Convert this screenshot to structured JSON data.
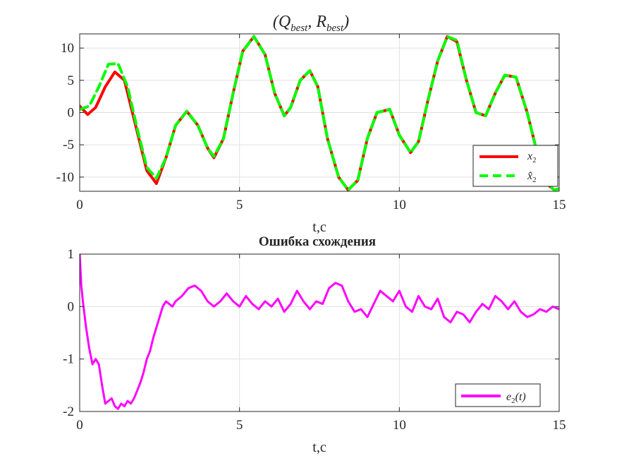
{
  "chart_data": [
    {
      "type": "line",
      "title": "(Q_best, R_best)",
      "xlabel": "t,c",
      "ylabel": "",
      "xlim": [
        0,
        15
      ],
      "ylim": [
        -12.2,
        12.2
      ],
      "xticks": [
        0,
        5,
        10,
        15
      ],
      "yticks": [
        10,
        5,
        0,
        -5,
        -10
      ],
      "grid": true,
      "legend_position": "bottom-right",
      "colors": {
        "x2": "#ff0000",
        "x2_hat": "#00ff00"
      },
      "series": [
        {
          "name": "x2",
          "style": "solid",
          "x": [
            0,
            0.25,
            0.5,
            0.8,
            1.1,
            1.4,
            1.8,
            2.1,
            2.4,
            2.7,
            3.0,
            3.35,
            3.7,
            4.0,
            4.2,
            4.5,
            4.8,
            5.1,
            5.45,
            5.8,
            6.1,
            6.4,
            6.6,
            6.9,
            7.2,
            7.45,
            7.75,
            8.1,
            8.4,
            8.7,
            9.0,
            9.3,
            9.7,
            10.0,
            10.35,
            10.6,
            10.9,
            11.2,
            11.5,
            11.8,
            12.1,
            12.4,
            12.7,
            13.0,
            13.3,
            13.65,
            14.0,
            14.3,
            14.6,
            14.85,
            15.0
          ],
          "y": [
            1.0,
            -0.3,
            0.8,
            4.0,
            6.3,
            5.0,
            -3.0,
            -9.0,
            -11.0,
            -7.0,
            -2.0,
            0.2,
            -2.0,
            -5.5,
            -7.0,
            -4.0,
            3.0,
            9.5,
            11.8,
            9.0,
            3.0,
            -0.5,
            0.8,
            5.0,
            6.5,
            4.0,
            -4.0,
            -10.0,
            -12.0,
            -10.5,
            -4.0,
            0.0,
            0.5,
            -3.5,
            -6.2,
            -4.5,
            2.0,
            8.0,
            11.8,
            11.0,
            5.0,
            0.0,
            -0.5,
            3.0,
            5.8,
            5.5,
            0.0,
            -6.0,
            -11.0,
            -12.0,
            -11.8
          ]
        },
        {
          "name": "x̂2",
          "style": "dashed",
          "x": [
            0,
            0.3,
            0.6,
            0.9,
            1.2,
            1.5,
            1.8,
            2.1,
            2.4,
            2.7,
            3.0,
            3.35,
            3.7,
            4.0,
            4.2,
            4.5,
            4.8,
            5.1,
            5.45,
            5.8,
            6.1,
            6.4,
            6.6,
            6.9,
            7.2,
            7.45,
            7.75,
            8.1,
            8.4,
            8.7,
            9.0,
            9.3,
            9.7,
            10.0,
            10.35,
            10.6,
            10.9,
            11.2,
            11.5,
            11.8,
            12.1,
            12.4,
            12.7,
            13.0,
            13.3,
            13.65,
            14.0,
            14.3,
            14.6,
            14.85,
            15.0
          ],
          "y": [
            0.5,
            1.0,
            4.0,
            7.5,
            7.6,
            4.0,
            -2.5,
            -8.5,
            -10.2,
            -7.0,
            -2.0,
            0.2,
            -2.0,
            -5.5,
            -6.8,
            -4.0,
            3.0,
            9.5,
            11.8,
            9.0,
            3.0,
            -0.5,
            0.8,
            5.0,
            6.5,
            4.0,
            -4.0,
            -10.0,
            -12.0,
            -10.5,
            -4.0,
            0.0,
            0.5,
            -3.5,
            -6.2,
            -4.5,
            2.0,
            8.0,
            11.8,
            11.2,
            5.0,
            0.0,
            -0.5,
            3.0,
            5.8,
            5.5,
            0.0,
            -6.0,
            -11.0,
            -12.0,
            -11.8
          ]
        }
      ]
    },
    {
      "type": "line",
      "title": "Ошибка схождения",
      "xlabel": "t,c",
      "ylabel": "",
      "xlim": [
        0,
        15
      ],
      "ylim": [
        -2,
        1
      ],
      "xticks": [
        0,
        5,
        10,
        15
      ],
      "yticks": [
        1,
        0,
        -1,
        -2
      ],
      "grid": true,
      "legend_position": "bottom-right",
      "colors": {
        "e2": "#ff00ff"
      },
      "series": [
        {
          "name": "e2(t)",
          "style": "solid",
          "x": [
            0,
            0.05,
            0.1,
            0.2,
            0.3,
            0.4,
            0.5,
            0.6,
            0.7,
            0.8,
            0.9,
            1.0,
            1.1,
            1.2,
            1.3,
            1.4,
            1.5,
            1.6,
            1.7,
            1.8,
            1.9,
            2.0,
            2.1,
            2.2,
            2.3,
            2.4,
            2.5,
            2.6,
            2.7,
            2.8,
            2.9,
            3.0,
            3.2,
            3.4,
            3.6,
            3.8,
            4.0,
            4.2,
            4.4,
            4.6,
            4.8,
            5.0,
            5.2,
            5.4,
            5.6,
            5.8,
            6.0,
            6.2,
            6.4,
            6.6,
            6.8,
            7.0,
            7.2,
            7.4,
            7.6,
            7.8,
            8.0,
            8.2,
            8.4,
            8.6,
            8.8,
            9.0,
            9.2,
            9.4,
            9.6,
            9.8,
            10.0,
            10.2,
            10.4,
            10.6,
            10.8,
            11.0,
            11.2,
            11.4,
            11.6,
            11.8,
            12.0,
            12.2,
            12.4,
            12.6,
            12.8,
            13.0,
            13.2,
            13.4,
            13.6,
            13.8,
            14.0,
            14.2,
            14.4,
            14.6,
            14.8,
            15.0
          ],
          "y": [
            1.0,
            0.4,
            0.1,
            -0.4,
            -0.8,
            -1.1,
            -1.0,
            -1.1,
            -1.5,
            -1.85,
            -1.8,
            -1.75,
            -1.9,
            -1.95,
            -1.85,
            -1.9,
            -1.8,
            -1.85,
            -1.75,
            -1.6,
            -1.45,
            -1.25,
            -1.0,
            -0.85,
            -0.6,
            -0.4,
            -0.2,
            0.0,
            0.1,
            0.05,
            0.0,
            0.1,
            0.2,
            0.35,
            0.4,
            0.3,
            0.1,
            0.0,
            0.1,
            0.25,
            0.1,
            0.0,
            0.2,
            0.05,
            -0.05,
            0.1,
            0.0,
            0.15,
            -0.1,
            0.05,
            0.3,
            0.1,
            -0.05,
            0.1,
            0.05,
            0.35,
            0.45,
            0.4,
            0.1,
            -0.1,
            -0.05,
            -0.2,
            0.05,
            0.3,
            0.2,
            0.1,
            0.3,
            0.0,
            -0.1,
            0.2,
            0.0,
            -0.05,
            0.15,
            -0.2,
            -0.3,
            -0.1,
            -0.15,
            -0.3,
            -0.1,
            0.05,
            -0.05,
            0.2,
            0.1,
            -0.05,
            0.1,
            -0.1,
            -0.2,
            -0.15,
            -0.05,
            -0.1,
            0.0,
            -0.05
          ]
        }
      ]
    }
  ]
}
